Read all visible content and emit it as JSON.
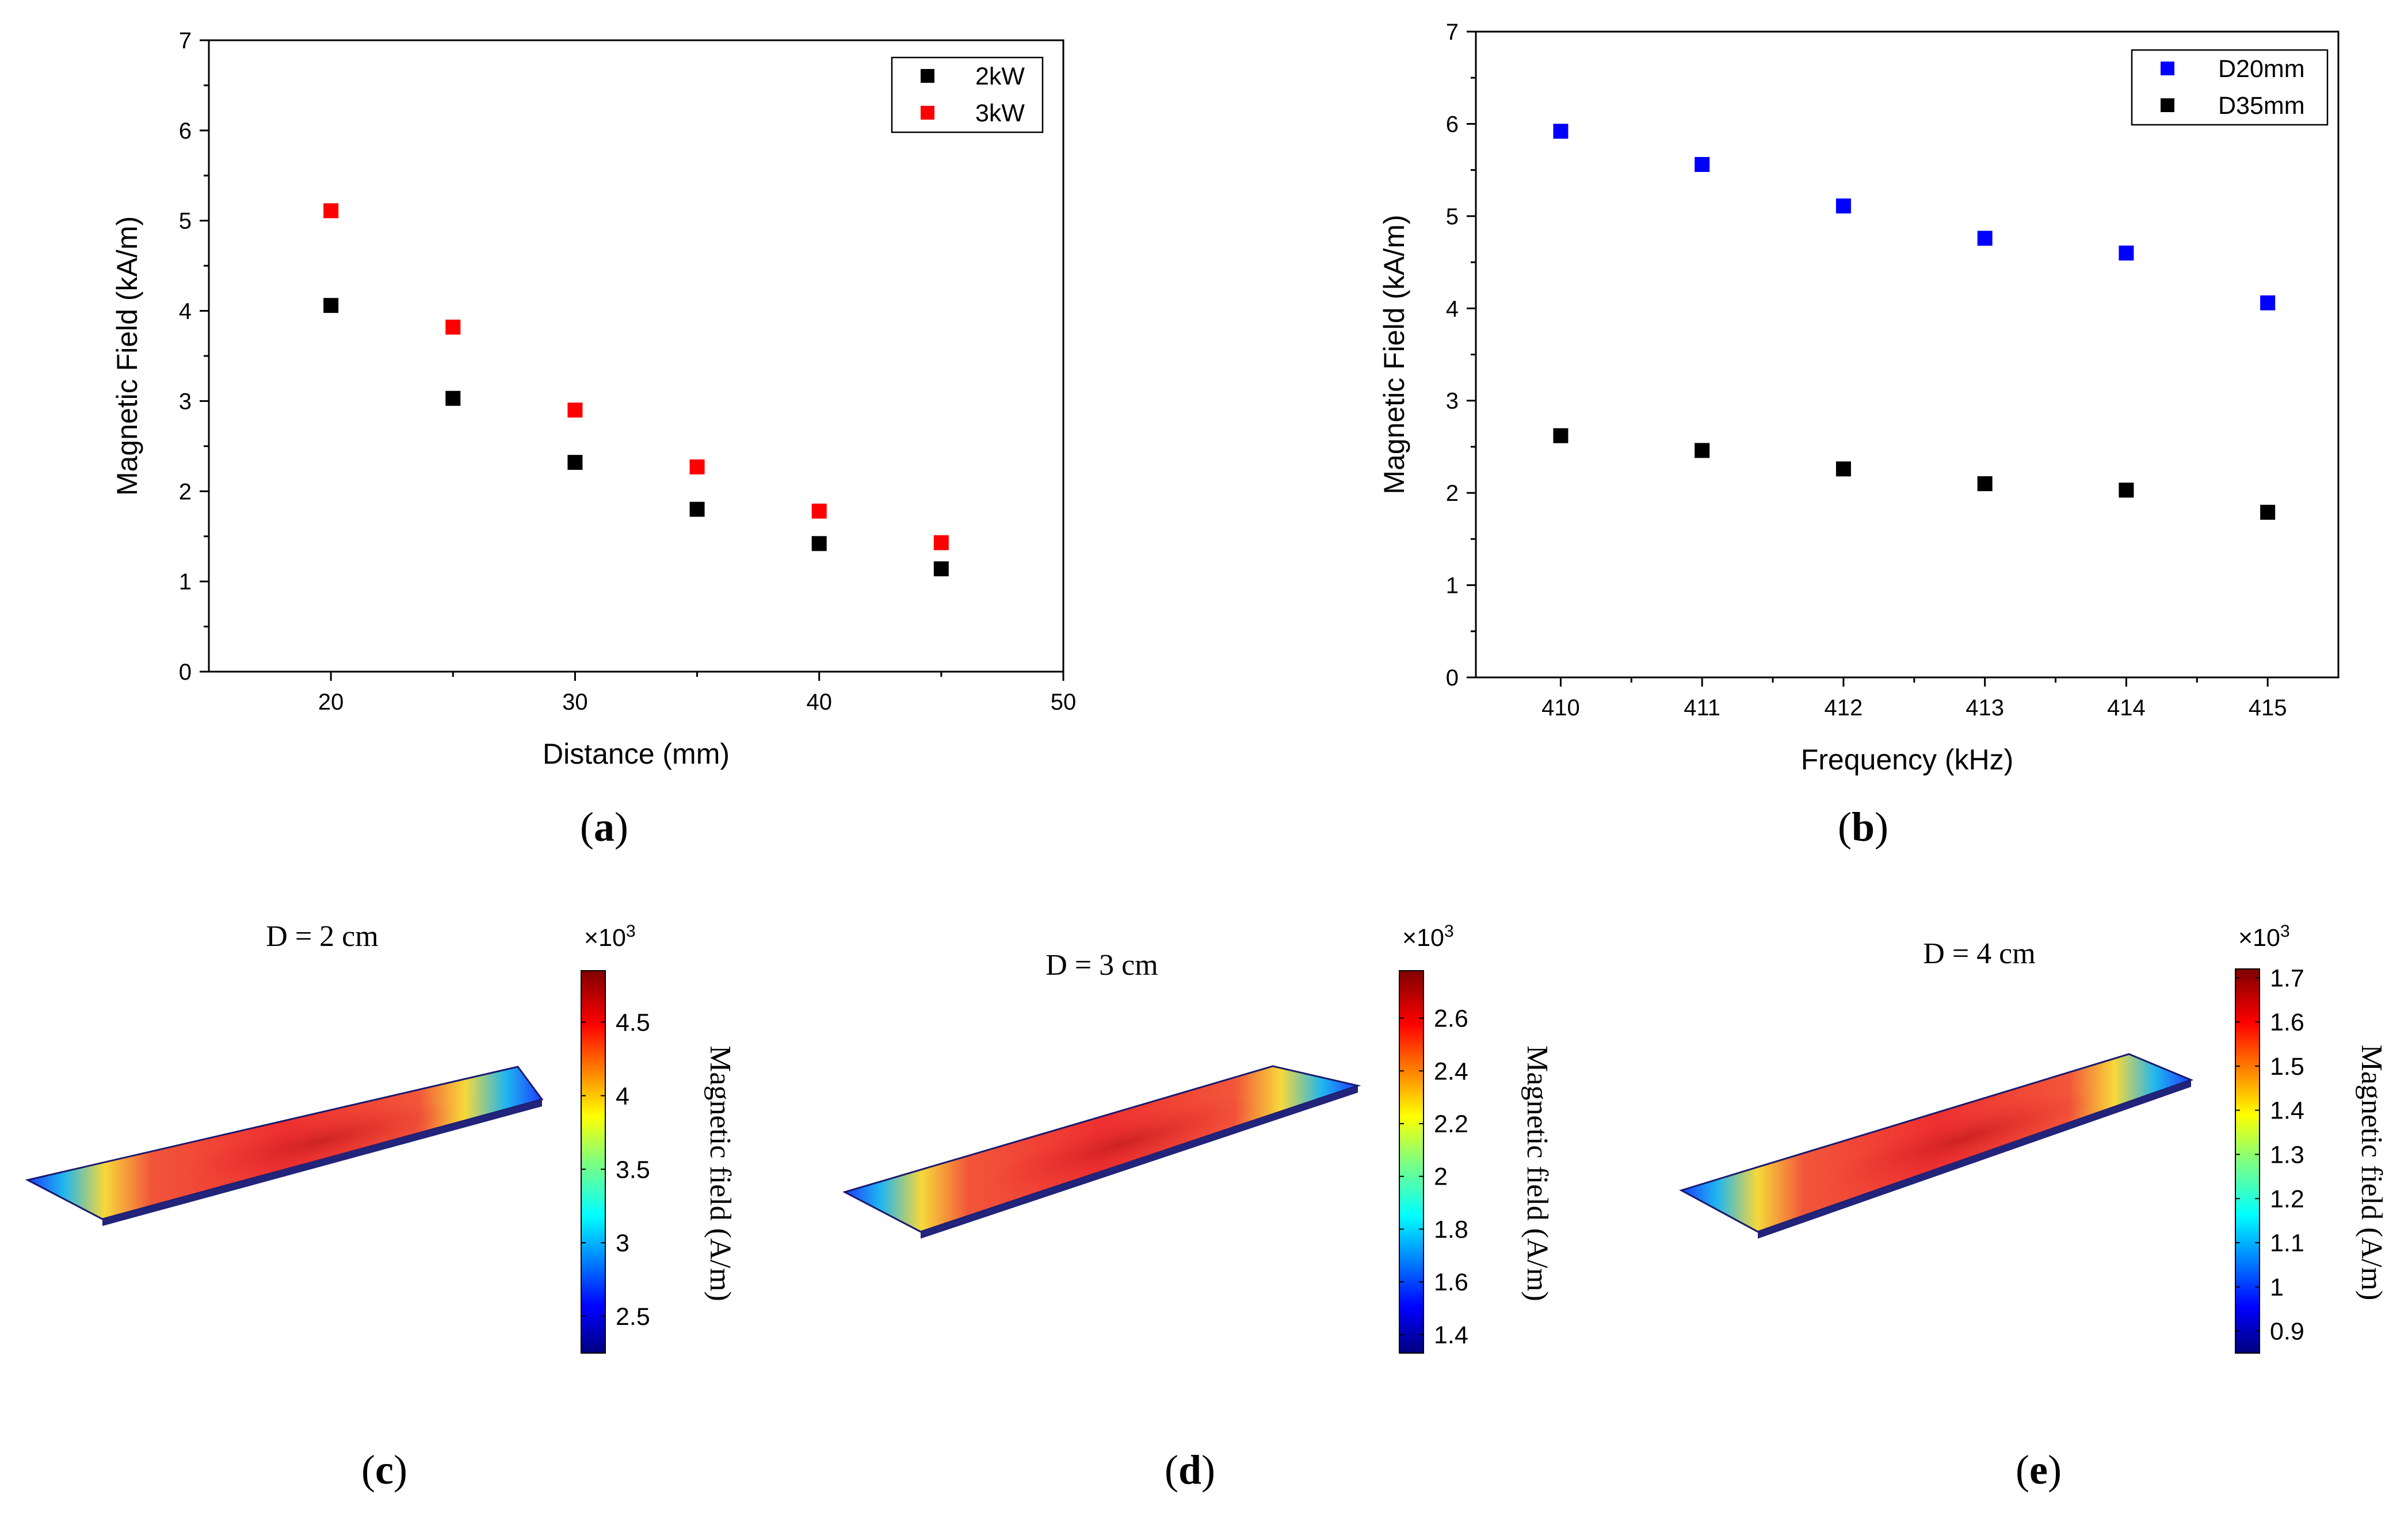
{
  "chart_data": [
    {
      "type": "scatter",
      "panel": "(a)",
      "panel_letter": "a",
      "xlabel": "Distance (mm)",
      "ylabel": "Magnetic Field (kA/m)",
      "xlim": [
        15,
        50
      ],
      "ylim": [
        0,
        7
      ],
      "xticks": [
        "20",
        "30",
        "40",
        "50"
      ],
      "yticks": [
        "0",
        "1",
        "2",
        "3",
        "4",
        "5",
        "6",
        "7"
      ],
      "legend_position": "top-right",
      "series": [
        {
          "name": "2kW",
          "color": "#000000",
          "x": [
            20,
            25,
            30,
            35,
            40,
            45
          ],
          "y": [
            4.06,
            3.03,
            2.32,
            1.8,
            1.42,
            1.14
          ]
        },
        {
          "name": "3kW",
          "color": "#ff0000",
          "x": [
            20,
            25,
            30,
            35,
            40,
            45
          ],
          "y": [
            5.11,
            3.82,
            2.9,
            2.27,
            1.78,
            1.43
          ]
        }
      ]
    },
    {
      "type": "scatter",
      "panel": "(b)",
      "panel_letter": "b",
      "xlabel": "Frequency (kHz)",
      "ylabel": "Magnetic Field (kA/m)",
      "xlim": [
        409.4,
        415.5
      ],
      "ylim": [
        0,
        7
      ],
      "xticks": [
        "410",
        "411",
        "412",
        "413",
        "414",
        "415"
      ],
      "yticks": [
        "0",
        "1",
        "2",
        "3",
        "4",
        "5",
        "6",
        "7"
      ],
      "legend_position": "top-right",
      "series": [
        {
          "name": "D20mm",
          "color": "#0000ff",
          "x": [
            410,
            411,
            412,
            413,
            414,
            415
          ],
          "y": [
            5.92,
            5.56,
            5.11,
            4.76,
            4.6,
            4.06
          ]
        },
        {
          "name": "D35mm",
          "color": "#000000",
          "x": [
            410,
            411,
            412,
            413,
            414,
            415
          ],
          "y": [
            2.62,
            2.46,
            2.26,
            2.1,
            2.03,
            1.79
          ]
        }
      ]
    },
    {
      "type": "heatmap",
      "panel": "(c)",
      "panel_letter": "c",
      "title": "D = 2 cm",
      "colorbar_label": "Magnetic field (A/m)",
      "multiplier_base": "×10",
      "multiplier_exp": "3",
      "colorbar_range": [
        2.25,
        4.85
      ],
      "colorbar_ticks": [
        "2.5",
        "3",
        "3.5",
        "4",
        "4.5"
      ]
    },
    {
      "type": "heatmap",
      "panel": "(d)",
      "panel_letter": "d",
      "title": "D = 3 cm",
      "colorbar_label": "Magnetic field (A/m)",
      "multiplier_base": "×10",
      "multiplier_exp": "3",
      "colorbar_range": [
        1.33,
        2.78
      ],
      "colorbar_ticks": [
        "1.4",
        "1.6",
        "1.8",
        "2",
        "2.2",
        "2.4",
        "2.6"
      ]
    },
    {
      "type": "heatmap",
      "panel": "(e)",
      "panel_letter": "e",
      "title": "D = 4 cm",
      "colorbar_label": "Magnetic field (A/m)",
      "multiplier_base": "×10",
      "multiplier_exp": "3",
      "colorbar_range": [
        0.85,
        1.72
      ],
      "colorbar_ticks": [
        "0.9",
        "1",
        "1.1",
        "1.2",
        "1.3",
        "1.4",
        "1.5",
        "1.6",
        "1.7"
      ]
    }
  ]
}
